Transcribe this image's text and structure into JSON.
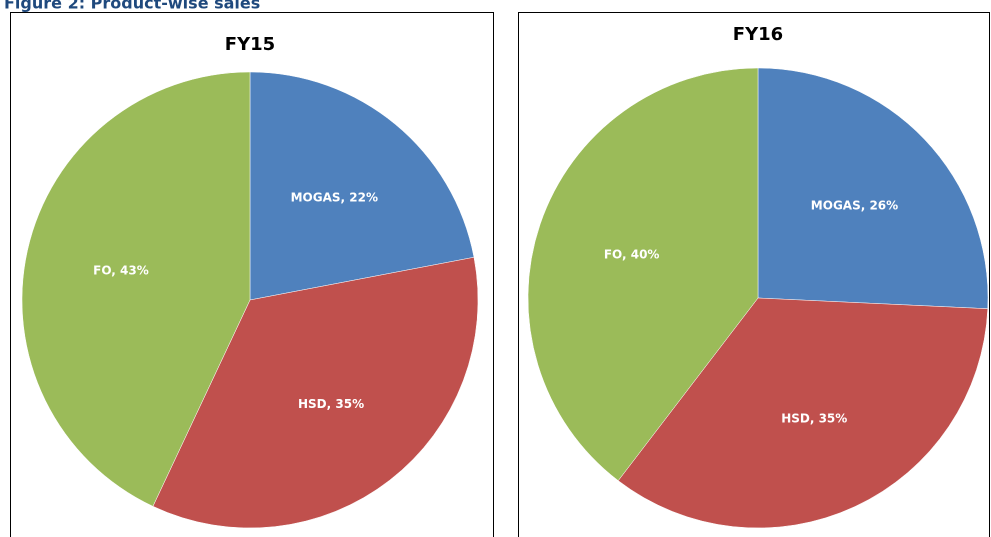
{
  "title": "Figure 2: Product-wise sales",
  "chart_data": [
    {
      "type": "pie",
      "title": "FY15",
      "categories": [
        "MOGAS",
        "HSD",
        "FO"
      ],
      "values": [
        22,
        35,
        43
      ],
      "value_labels": [
        "MOGAS, 22%",
        "HSD, 35%",
        "FO, 43%"
      ],
      "colors": [
        "#4f81bd",
        "#c0504d",
        "#9bbb59"
      ]
    },
    {
      "type": "pie",
      "title": "FY16",
      "categories": [
        "MOGAS",
        "HSD",
        "FO"
      ],
      "values": [
        26,
        35,
        40
      ],
      "value_labels": [
        "MOGAS, 26%",
        "HSD, 35%",
        "FO, 40%"
      ],
      "colors": [
        "#4f81bd",
        "#c0504d",
        "#9bbb59"
      ]
    }
  ]
}
